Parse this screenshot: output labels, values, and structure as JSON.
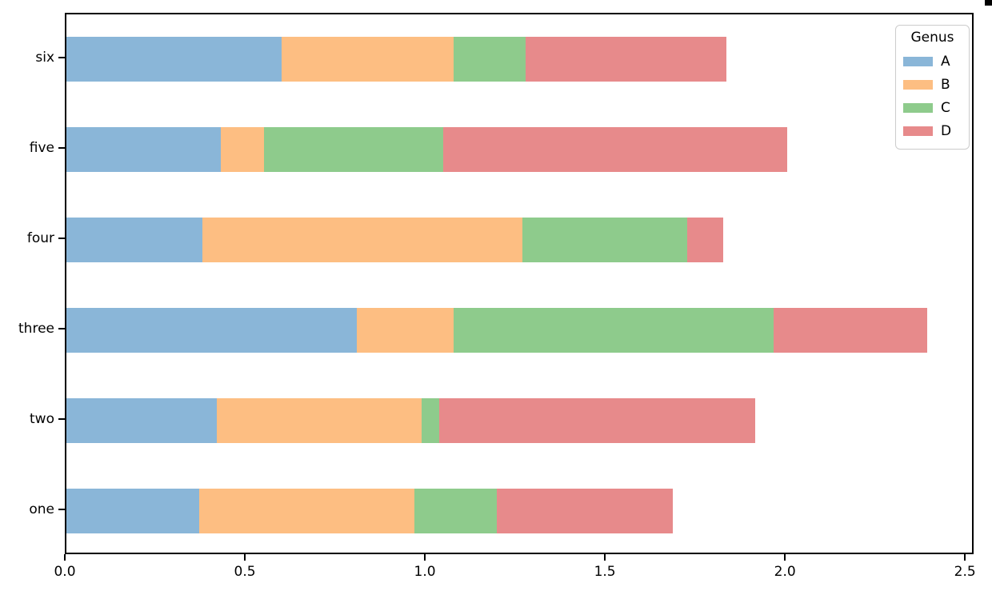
{
  "chart_data": {
    "type": "bar",
    "orientation": "horizontal",
    "stacked": true,
    "title": "",
    "xlabel": "",
    "ylabel": "",
    "categories": [
      "one",
      "two",
      "three",
      "four",
      "five",
      "six"
    ],
    "row_order_top_to_bottom": [
      "six",
      "five",
      "four",
      "three",
      "two",
      "one"
    ],
    "series": [
      {
        "name": "A",
        "color": "#8ab6d8",
        "values": [
          0.37,
          0.42,
          0.81,
          0.38,
          0.43,
          0.6
        ]
      },
      {
        "name": "B",
        "color": "#fdbe82",
        "values": [
          0.6,
          0.57,
          0.27,
          0.89,
          0.12,
          0.48
        ]
      },
      {
        "name": "C",
        "color": "#8ecb8c",
        "values": [
          0.23,
          0.05,
          0.89,
          0.46,
          0.5,
          0.2
        ]
      },
      {
        "name": "D",
        "color": "#e78a8b",
        "values": [
          0.49,
          0.88,
          0.43,
          0.1,
          0.96,
          0.56
        ]
      }
    ],
    "totals": [
      1.69,
      1.92,
      2.4,
      1.83,
      2.01,
      1.84
    ],
    "xlim": [
      0,
      2.524
    ],
    "x_tick_values": [
      0,
      0.5,
      1.0,
      1.5,
      2.0,
      2.5
    ],
    "x_tick_labels": [
      "0.0",
      "0.5",
      "1.0",
      "1.5",
      "2.0",
      "2.5"
    ],
    "grid": false,
    "legend": {
      "title": "Genus",
      "position": "upper-right",
      "entries": [
        "A",
        "B",
        "C",
        "D"
      ]
    }
  },
  "colors": {
    "background": "#ffffff",
    "spine": "#000000",
    "text": "#000000",
    "legend_border": "#cccccc"
  }
}
